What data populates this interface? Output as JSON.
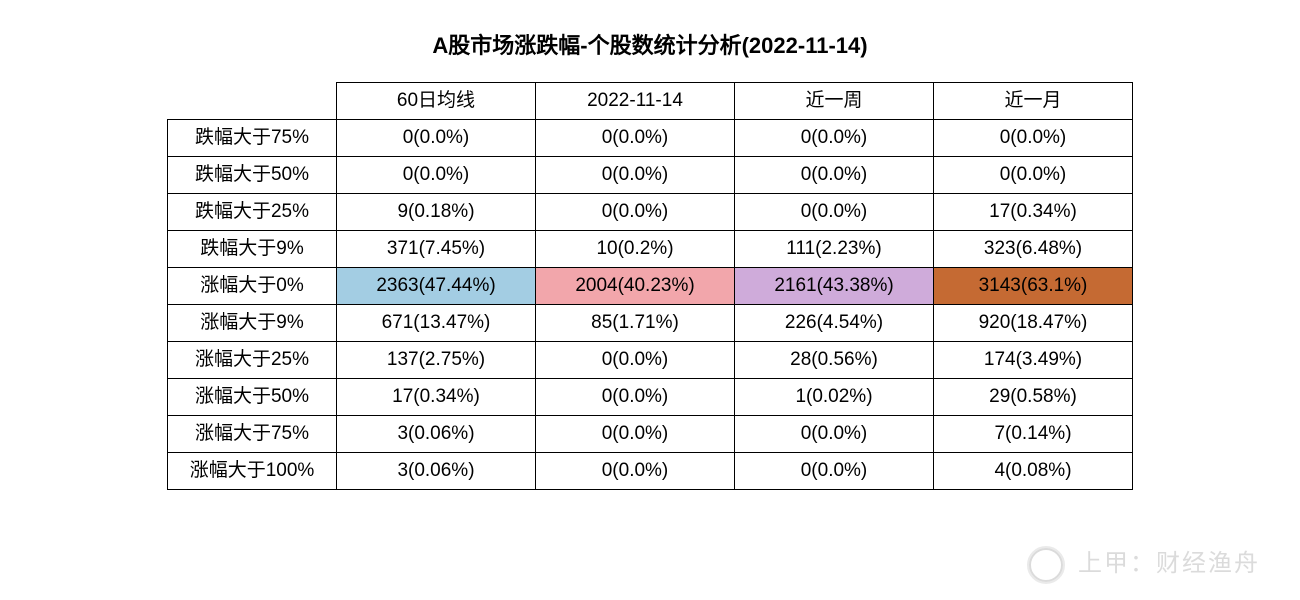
{
  "title": "A股市场涨跌幅-个股数统计分析(2022-11-14)",
  "table": {
    "type": "table",
    "columns": [
      "60日均线",
      "2022-11-14",
      "近一周",
      "近一月"
    ],
    "row_labels": [
      "跌幅大于75%",
      "跌幅大于50%",
      "跌幅大于25%",
      "跌幅大于9%",
      "涨幅大于0%",
      "涨幅大于9%",
      "涨幅大于25%",
      "涨幅大于50%",
      "涨幅大于75%",
      "涨幅大于100%"
    ],
    "cells": [
      [
        "0(0.0%)",
        "0(0.0%)",
        "0(0.0%)",
        "0(0.0%)"
      ],
      [
        "0(0.0%)",
        "0(0.0%)",
        "0(0.0%)",
        "0(0.0%)"
      ],
      [
        "9(0.18%)",
        "0(0.0%)",
        "0(0.0%)",
        "17(0.34%)"
      ],
      [
        "371(7.45%)",
        "10(0.2%)",
        "111(2.23%)",
        "323(6.48%)"
      ],
      [
        "2363(47.44%)",
        "2004(40.23%)",
        "2161(43.38%)",
        "3143(63.1%)"
      ],
      [
        "671(13.47%)",
        "85(1.71%)",
        "226(4.54%)",
        "920(18.47%)"
      ],
      [
        "137(2.75%)",
        "0(0.0%)",
        "28(0.56%)",
        "174(3.49%)"
      ],
      [
        "17(0.34%)",
        "0(0.0%)",
        "1(0.02%)",
        "29(0.58%)"
      ],
      [
        "3(0.06%)",
        "0(0.0%)",
        "0(0.0%)",
        "7(0.14%)"
      ],
      [
        "3(0.06%)",
        "0(0.0%)",
        "0(0.0%)",
        "4(0.08%)"
      ]
    ],
    "highlight_row_index": 4,
    "highlight_colors": [
      "#a3cde3",
      "#f2a6ab",
      "#cfabda",
      "#c56a33"
    ],
    "border_color": "#000000",
    "background_color": "#ffffff",
    "font_size": 19,
    "text_color": "#000000",
    "col_min_width": 170,
    "rowlabel_min_width": 140
  },
  "watermark": {
    "text": "上甲：财经渔舟",
    "color": "#bfbfbf"
  }
}
